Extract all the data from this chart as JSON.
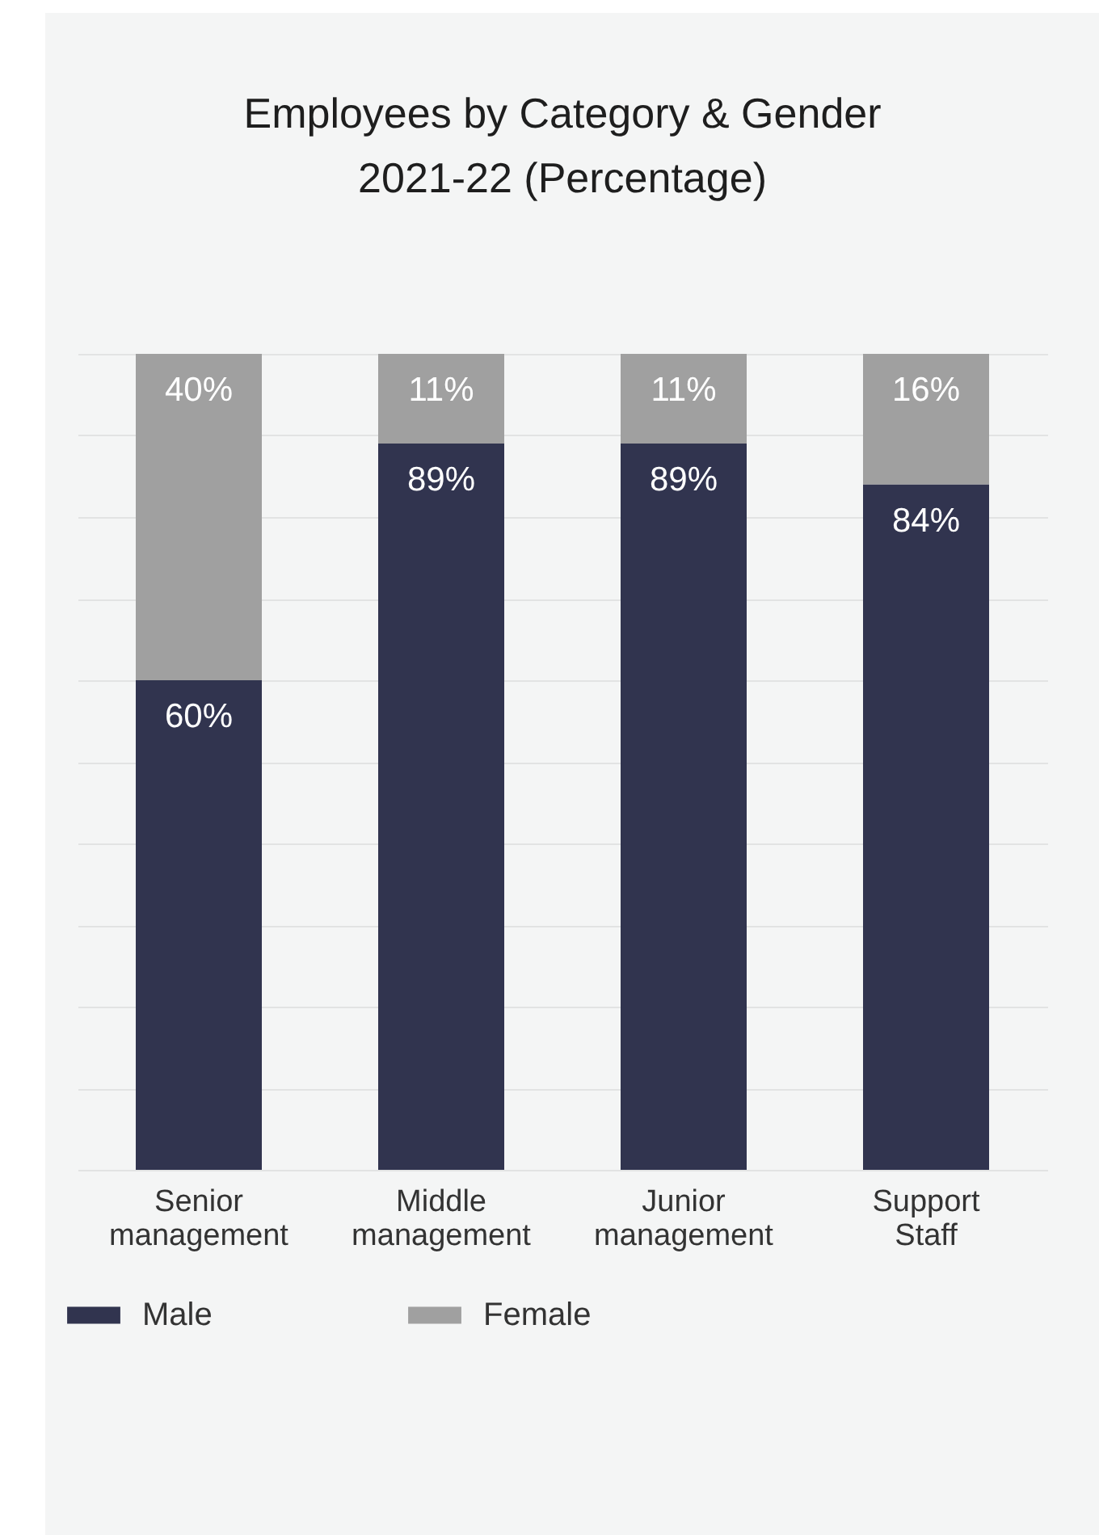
{
  "chart_data": {
    "type": "bar",
    "title": "Employees by Category & Gender 2021-22 (Percentage)",
    "categories": [
      "Senior management",
      "Middle management",
      "Junior management",
      "Support Staff"
    ],
    "series": [
      {
        "name": "Male",
        "color": "#31344f",
        "values": [
          60,
          89,
          89,
          84
        ],
        "value_labels": [
          "60%",
          "89%",
          "89%",
          "84%"
        ]
      },
      {
        "name": "Female",
        "color": "#a0a0a0",
        "values": [
          40,
          11,
          11,
          16
        ],
        "value_labels": [
          "40%",
          "11%",
          "11%",
          "16%"
        ]
      }
    ],
    "stacked": true,
    "tick_labels": "x",
    "grid": "y",
    "legend": "bottom"
  }
}
